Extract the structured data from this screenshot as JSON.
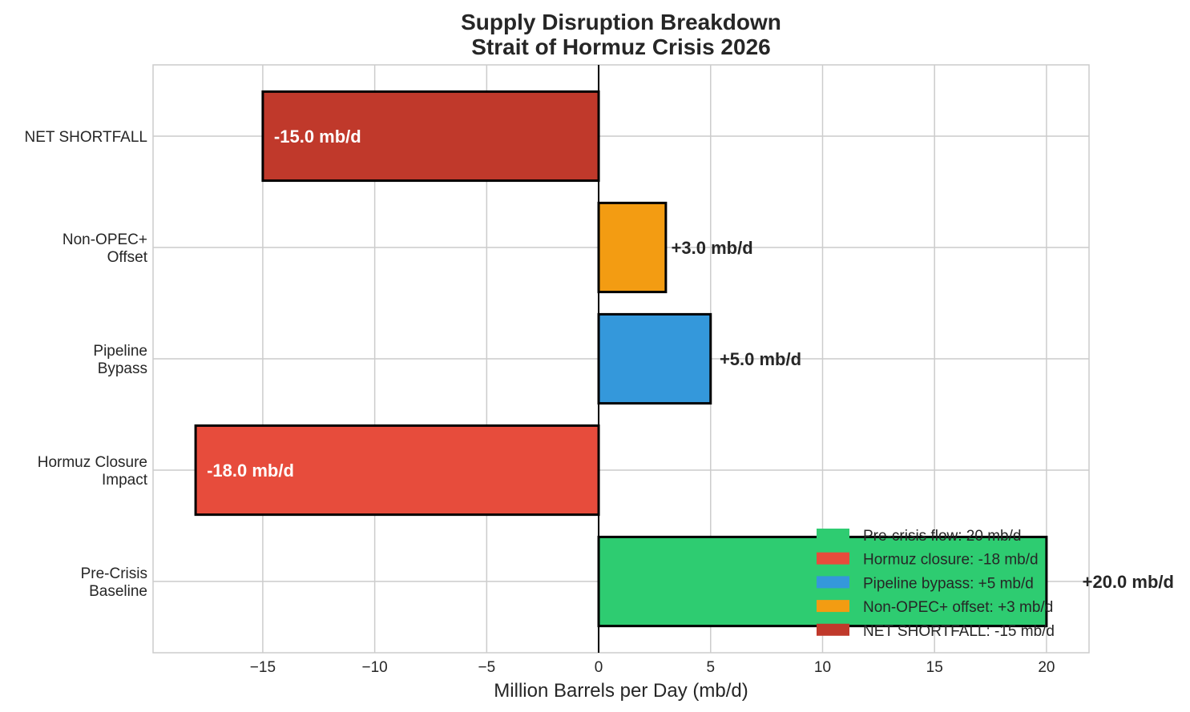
{
  "chart_data": {
    "type": "bar",
    "orientation": "horizontal",
    "title": "Supply Disruption Breakdown\nStrait of Hormuz Crisis 2026",
    "xlabel": "Million Barrels per Day (mb/d)",
    "ylabel": "",
    "categories": [
      "Pre-Crisis\nBaseline",
      "Hormuz Closure\nImpact",
      "Pipeline\nBypass",
      "Non-OPEC+\nOffset",
      "NET SHORTFALL"
    ],
    "values": [
      20,
      -18,
      5,
      3,
      -15
    ],
    "data_labels": [
      "+20.0 mb/d",
      "-18.0 mb/d",
      "+5.0 mb/d",
      "+3.0 mb/d",
      "-15.0 mb/d"
    ],
    "colors": [
      "#2ecc71",
      "#e74c3c",
      "#3498db",
      "#f39c12",
      "#c0392b"
    ],
    "xlim": [
      -19.9,
      21.9
    ],
    "xticks": [
      -15,
      -10,
      -5,
      0,
      5,
      10,
      15,
      20
    ],
    "xtick_labels": [
      "−15",
      "−10",
      "−5",
      "0",
      "5",
      "10",
      "15",
      "20"
    ],
    "grid": true,
    "legend": {
      "placement": "lower-right",
      "entries": [
        {
          "label": "Pre-crisis flow: 20 mb/d",
          "color": "#2ecc71"
        },
        {
          "label": "Hormuz closure: -18 mb/d",
          "color": "#e74c3c"
        },
        {
          "label": "Pipeline bypass: +5 mb/d",
          "color": "#3498db"
        },
        {
          "label": "Non-OPEC+ offset: +3 mb/d",
          "color": "#f39c12"
        },
        {
          "label": "NET SHORTFALL: -15 mb/d",
          "color": "#c0392b"
        }
      ]
    }
  }
}
